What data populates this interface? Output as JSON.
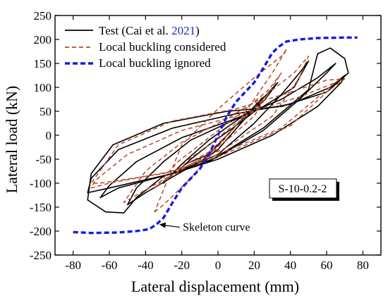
{
  "chart_data": {
    "type": "line",
    "xlabel": "Lateral displacement (mm)",
    "ylabel": "Lateral load (kN)",
    "xlim": [
      -90,
      90
    ],
    "ylim": [
      -250,
      250
    ],
    "x_ticks": [
      -80,
      -60,
      -40,
      -20,
      0,
      20,
      40,
      60,
      80
    ],
    "y_ticks": [
      -250,
      -200,
      -150,
      -100,
      -50,
      0,
      50,
      100,
      150,
      200,
      250
    ],
    "legend_position": "top-left",
    "specimen_label": "S-10-0.2-2",
    "annotation": {
      "text": "Skeleton curve",
      "arrow_from": [
        -21,
        -192
      ],
      "arrow_to": [
        -34,
        -186
      ]
    },
    "series": [
      {
        "name": "Test (Cai et al. ",
        "citation_year": "2021",
        "citation_close": ")",
        "color": "#000000",
        "style": "solid",
        "loops": [
          [
            [
              -5,
              -40
            ],
            [
              0,
              -20
            ],
            [
              10,
              20
            ],
            [
              20,
              60
            ],
            [
              25,
              80
            ],
            [
              22,
              55
            ],
            [
              10,
              20
            ],
            [
              -5,
              -20
            ],
            [
              -15,
              -50
            ],
            [
              -22,
              -75
            ],
            [
              -18,
              -60
            ],
            [
              -5,
              -40
            ]
          ],
          [
            [
              -10,
              -55
            ],
            [
              0,
              -30
            ],
            [
              15,
              35
            ],
            [
              28,
              90
            ],
            [
              33,
              110
            ],
            [
              25,
              70
            ],
            [
              10,
              30
            ],
            [
              -5,
              -10
            ],
            [
              -20,
              -60
            ],
            [
              -30,
              -100
            ],
            [
              -25,
              -80
            ],
            [
              -10,
              -55
            ]
          ],
          [
            [
              -15,
              -65
            ],
            [
              0,
              -40
            ],
            [
              20,
              25
            ],
            [
              35,
              85
            ],
            [
              45,
              130
            ],
            [
              50,
              155
            ],
            [
              42,
              100
            ],
            [
              25,
              60
            ],
            [
              5,
              25
            ],
            [
              -15,
              -10
            ],
            [
              -30,
              -55
            ],
            [
              -45,
              -110
            ],
            [
              -50,
              -145
            ],
            [
              -40,
              -120
            ],
            [
              -15,
              -65
            ]
          ],
          [
            [
              -20,
              -75
            ],
            [
              0,
              -45
            ],
            [
              25,
              10
            ],
            [
              45,
              75
            ],
            [
              60,
              130
            ],
            [
              65,
              150
            ],
            [
              55,
              120
            ],
            [
              35,
              75
            ],
            [
              10,
              35
            ],
            [
              -20,
              -5
            ],
            [
              -45,
              -55
            ],
            [
              -60,
              -105
            ],
            [
              -65,
              -130
            ],
            [
              -55,
              -110
            ],
            [
              -20,
              -75
            ]
          ],
          [
            [
              -25,
              -80
            ],
            [
              0,
              -50
            ],
            [
              30,
              0
            ],
            [
              55,
              60
            ],
            [
              68,
              110
            ],
            [
              70,
              125
            ],
            [
              62,
              100
            ],
            [
              40,
              65
            ],
            [
              10,
              45
            ],
            [
              -25,
              15
            ],
            [
              -55,
              -30
            ],
            [
              -70,
              -90
            ],
            [
              -72,
              -120
            ],
            [
              -60,
              -110
            ],
            [
              -25,
              -80
            ]
          ],
          [
            [
              -30,
              -85
            ],
            [
              -5,
              -55
            ],
            [
              25,
              15
            ],
            [
              50,
              95
            ],
            [
              55,
              170
            ],
            [
              62,
              182
            ],
            [
              70,
              160
            ],
            [
              72,
              130
            ],
            [
              60,
              90
            ],
            [
              35,
              60
            ],
            [
              5,
              50
            ],
            [
              -30,
              25
            ],
            [
              -58,
              -20
            ],
            [
              -70,
              -80
            ],
            [
              -72,
              -135
            ],
            [
              -62,
              -160
            ],
            [
              -52,
              -162
            ],
            [
              -45,
              -130
            ],
            [
              -30,
              -85
            ]
          ]
        ]
      },
      {
        "name": "Local buckling considered",
        "color": "#b5482a",
        "style": "dashed",
        "loops": [
          [
            [
              -5,
              -35
            ],
            [
              5,
              0
            ],
            [
              15,
              40
            ],
            [
              25,
              75
            ],
            [
              22,
              55
            ],
            [
              10,
              25
            ],
            [
              -5,
              -20
            ],
            [
              -18,
              -55
            ],
            [
              -22,
              -70
            ],
            [
              -15,
              -55
            ],
            [
              -5,
              -35
            ]
          ],
          [
            [
              -10,
              -50
            ],
            [
              5,
              -10
            ],
            [
              20,
              40
            ],
            [
              30,
              100
            ],
            [
              35,
              130
            ],
            [
              28,
              95
            ],
            [
              12,
              45
            ],
            [
              -5,
              -5
            ],
            [
              -22,
              -55
            ],
            [
              -35,
              -110
            ],
            [
              -30,
              -95
            ],
            [
              -10,
              -50
            ]
          ],
          [
            [
              -15,
              -60
            ],
            [
              5,
              -25
            ],
            [
              30,
              40
            ],
            [
              45,
              120
            ],
            [
              50,
              165
            ],
            [
              42,
              130
            ],
            [
              25,
              80
            ],
            [
              5,
              35
            ],
            [
              -20,
              -15
            ],
            [
              -40,
              -75
            ],
            [
              -52,
              -140
            ],
            [
              -45,
              -125
            ],
            [
              -15,
              -60
            ]
          ],
          [
            [
              -25,
              -75
            ],
            [
              0,
              -40
            ],
            [
              35,
              15
            ],
            [
              60,
              95
            ],
            [
              68,
              120
            ],
            [
              65,
              110
            ],
            [
              45,
              80
            ],
            [
              15,
              45
            ],
            [
              -20,
              10
            ],
            [
              -50,
              -40
            ],
            [
              -68,
              -95
            ],
            [
              -70,
              -110
            ],
            [
              -60,
              -100
            ],
            [
              -25,
              -75
            ]
          ],
          [
            [
              -30,
              -80
            ],
            [
              0,
              -45
            ],
            [
              40,
              20
            ],
            [
              60,
              90
            ],
            [
              70,
              118
            ],
            [
              60,
              115
            ],
            [
              40,
              90
            ],
            [
              10,
              55
            ],
            [
              -25,
              30
            ],
            [
              -55,
              -20
            ],
            [
              -70,
              -100
            ],
            [
              -65,
              -100
            ],
            [
              -30,
              -80
            ]
          ],
          [
            [
              -35,
              -160
            ],
            [
              -30,
              -145
            ],
            [
              -15,
              -90
            ],
            [
              10,
              20
            ],
            [
              30,
              130
            ],
            [
              38,
              180
            ],
            [
              35,
              165
            ],
            [
              20,
              120
            ],
            [
              0,
              55
            ],
            [
              -20,
              -20
            ],
            [
              -35,
              -160
            ]
          ]
        ]
      },
      {
        "name": "Local buckling ignored",
        "color": "#1a1adb",
        "style": "dashed",
        "points": [
          [
            -80,
            -202
          ],
          [
            -70,
            -204
          ],
          [
            -55,
            -203
          ],
          [
            -45,
            -200
          ],
          [
            -38,
            -196
          ],
          [
            -34,
            -186
          ],
          [
            -30,
            -172
          ],
          [
            -25,
            -140
          ],
          [
            -20,
            -110
          ],
          [
            -15,
            -90
          ],
          [
            -10,
            -70
          ],
          [
            -5,
            -40
          ],
          [
            0,
            0
          ],
          [
            5,
            40
          ],
          [
            10,
            70
          ],
          [
            15,
            90
          ],
          [
            20,
            110
          ],
          [
            25,
            140
          ],
          [
            30,
            172
          ],
          [
            34,
            186
          ],
          [
            38,
            196
          ],
          [
            45,
            200
          ],
          [
            55,
            203
          ],
          [
            70,
            204
          ],
          [
            77,
            204
          ]
        ]
      }
    ]
  }
}
